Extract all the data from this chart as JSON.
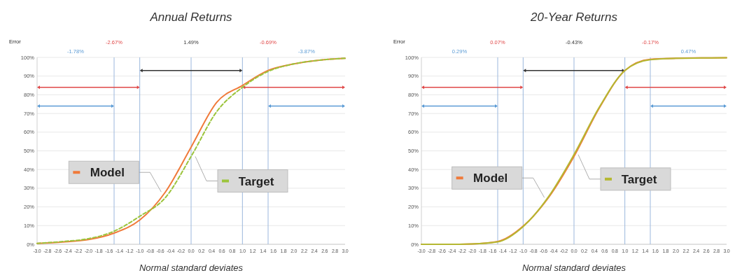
{
  "chart_data": [
    {
      "type": "line",
      "title": "Annual Returns",
      "xlabel": "Normal standard deviates",
      "x": [
        -3,
        -2.5,
        -2,
        -1.5,
        -1,
        -0.5,
        0,
        0.5,
        1,
        1.5,
        2,
        2.5,
        3
      ],
      "series": [
        {
          "name": "Model",
          "color": "#f07a3a",
          "line_style": "solid",
          "values": [
            0.5,
            1.2,
            2.5,
            6,
            13,
            28,
            52,
            76,
            85,
            93,
            96.5,
            98.5,
            99.5
          ]
        },
        {
          "name": "Target",
          "color": "#9cc43c",
          "line_style": "dashed",
          "values": [
            0.5,
            1.5,
            3,
            7,
            15,
            25,
            47,
            71,
            84,
            92.5,
            96.5,
            98.5,
            99.5
          ]
        }
      ],
      "xlim": [
        -3,
        3
      ],
      "xticks": [
        {
          "value": -3,
          "label": "-3.0"
        },
        -2.8,
        -2.6,
        -2.4,
        -2.2,
        {
          "value": -2,
          "label": "-2.0"
        },
        -1.8,
        -1.6,
        -1.4,
        -1.2,
        {
          "value": -1,
          "label": "-1.0"
        },
        -0.8,
        -0.6,
        -0.4,
        -0.2,
        {
          "value": 0,
          "label": "0.0"
        },
        0.2,
        0.4,
        0.6,
        0.8,
        {
          "value": 1,
          "label": "1.0"
        },
        1.2,
        1.4,
        1.6,
        1.8,
        {
          "value": 2,
          "label": "2.0"
        },
        2.2,
        2.4,
        2.6,
        2.8,
        {
          "value": 3,
          "label": "3.0"
        }
      ],
      "ylim": [
        0,
        100
      ],
      "yticks": [
        {
          "value": 0,
          "label": "0%"
        },
        {
          "value": 10,
          "label": "10%"
        },
        {
          "value": 20,
          "label": "20%"
        },
        {
          "value": 30,
          "label": "30%"
        },
        {
          "value": 40,
          "label": "40%"
        },
        {
          "value": 50,
          "label": "50%"
        },
        {
          "value": 60,
          "label": "60%"
        },
        {
          "value": 70,
          "label": "70%"
        },
        {
          "value": 80,
          "label": "80%"
        },
        {
          "value": 90,
          "label": "90%"
        },
        {
          "value": 100,
          "label": "100%"
        }
      ],
      "grid": "y",
      "legend": "left",
      "ref_lines": [
        {
          "axis": "x",
          "value": -1.5,
          "color": "#9bb7dd"
        },
        {
          "axis": "x",
          "value": -1,
          "color": "#9bb7dd"
        },
        {
          "axis": "x",
          "value": 0,
          "color": "#9bb7dd"
        },
        {
          "axis": "x",
          "value": 1,
          "color": "#9bb7dd"
        },
        {
          "axis": "x",
          "value": 1.5,
          "color": "#9bb7dd"
        }
      ],
      "annotations": [
        "Error",
        "-1.78%",
        "-2.67%",
        "1.49%",
        "-0.69%",
        "-3.87%"
      ]
    },
    {
      "type": "line",
      "title": "20-Year Returns",
      "xlabel": "Normal standard deviates",
      "x": [
        -3,
        -2.5,
        -2,
        -1.5,
        -1,
        -0.5,
        0,
        0.5,
        1,
        1.5,
        2,
        2.5,
        3
      ],
      "series": [
        {
          "name": "Model",
          "color": "#f07a3a",
          "line_style": "solid",
          "values": [
            0,
            0,
            0.2,
            1.5,
            9.7,
            25,
            47,
            73,
            93,
            99,
            99.5,
            99.7,
            99.8
          ]
        },
        {
          "name": "Target",
          "color": "#b5b832",
          "line_style": "solid",
          "values": [
            0,
            0,
            0.2,
            1.3,
            9.5,
            25.5,
            48,
            73.5,
            93,
            98.8,
            99.5,
            99.7,
            99.8
          ]
        }
      ],
      "xlim": [
        -3,
        3
      ],
      "xticks": [
        {
          "value": -3,
          "label": "-3.0"
        },
        -2.8,
        -2.6,
        -2.4,
        -2.2,
        {
          "value": -2,
          "label": "-2.0"
        },
        -1.8,
        -1.6,
        -1.4,
        -1.2,
        {
          "value": -1,
          "label": "-1.0"
        },
        -0.8,
        -0.6,
        -0.4,
        -0.2,
        {
          "value": 0,
          "label": "0.0"
        },
        0.2,
        0.4,
        0.6,
        0.8,
        {
          "value": 1,
          "label": "1.0"
        },
        1.2,
        1.4,
        1.6,
        1.8,
        {
          "value": 2,
          "label": "2.0"
        },
        2.2,
        2.4,
        2.6,
        2.8,
        {
          "value": 3,
          "label": "3.0"
        }
      ],
      "ylim": [
        0,
        100
      ],
      "yticks": [
        {
          "value": 0,
          "label": "0%"
        },
        {
          "value": 10,
          "label": "10%"
        },
        {
          "value": 20,
          "label": "20%"
        },
        {
          "value": 30,
          "label": "30%"
        },
        {
          "value": 40,
          "label": "40%"
        },
        {
          "value": 50,
          "label": "50%"
        },
        {
          "value": 60,
          "label": "60%"
        },
        {
          "value": 70,
          "label": "70%"
        },
        {
          "value": 80,
          "label": "80%"
        },
        {
          "value": 90,
          "label": "90%"
        },
        {
          "value": 100,
          "label": "100%"
        }
      ],
      "grid": "y",
      "legend": "left",
      "ref_lines": [
        {
          "axis": "x",
          "value": -1.5,
          "color": "#9bb7dd"
        },
        {
          "axis": "x",
          "value": -1,
          "color": "#9bb7dd"
        },
        {
          "axis": "x",
          "value": 0,
          "color": "#9bb7dd"
        },
        {
          "axis": "x",
          "value": 1,
          "color": "#9bb7dd"
        },
        {
          "axis": "x",
          "value": 1.5,
          "color": "#9bb7dd"
        }
      ],
      "annotations": [
        "Error",
        "0.29%",
        "0.07%",
        "-0.43%",
        "-0.17%",
        "0.47%"
      ]
    }
  ]
}
